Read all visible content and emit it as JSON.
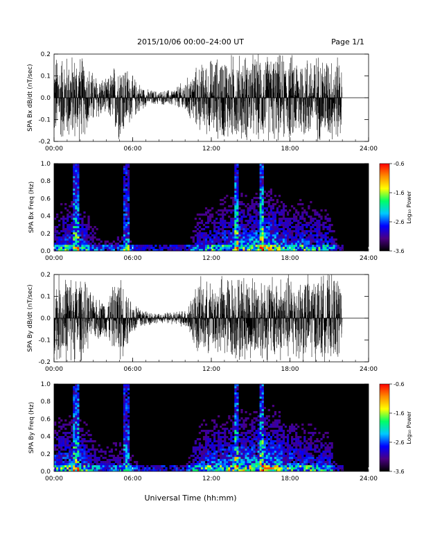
{
  "header": {
    "title": "2015/10/06  00:00–24:00 UT",
    "page": "Page 1/1"
  },
  "footer": {
    "xlabel": "Universal Time (hh:mm)"
  },
  "colorbar": {
    "label": "Log₁₀ Power",
    "range": [
      -3.6,
      -0.6
    ],
    "ticks": [
      "-0.6",
      "-1.6",
      "-2.6",
      "-3.6"
    ],
    "colors": [
      "#000000",
      "#4b0082",
      "#0000ff",
      "#00c8ff",
      "#00ff66",
      "#ffff00",
      "#ff8c00",
      "#ff0000"
    ]
  },
  "chart_data": [
    {
      "type": "line",
      "ylabel": "SPA Bx dB/dt (nT/sec)",
      "xlim": [
        0,
        24
      ],
      "ylim": [
        -0.2,
        0.2
      ],
      "xticks": [
        "00:00",
        "06:00",
        "12:00",
        "18:00",
        "24:00"
      ],
      "yticks": [
        "0.2",
        "0.1",
        "0.0",
        "-0.1",
        "-0.2"
      ],
      "x": [
        0,
        1,
        2,
        3,
        4,
        5,
        6,
        7,
        8,
        9,
        10,
        11,
        12,
        13,
        14,
        15,
        16,
        17,
        18,
        19,
        20,
        21,
        21.9,
        22,
        24
      ],
      "amplitude": [
        0.2,
        0.2,
        0.2,
        0.12,
        0.08,
        0.2,
        0.1,
        0.04,
        0.03,
        0.04,
        0.08,
        0.15,
        0.18,
        0.2,
        0.2,
        0.2,
        0.2,
        0.2,
        0.2,
        0.2,
        0.2,
        0.2,
        0.2,
        0,
        0
      ]
    },
    {
      "type": "heatmap",
      "ylabel": "SPA Bx Freq (Hz)",
      "xlim": [
        0,
        24
      ],
      "ylim": [
        0,
        1
      ],
      "xticks": [
        "00:00",
        "06:00",
        "12:00",
        "18:00",
        "24:00"
      ],
      "yticks": [
        "1.0",
        "0.8",
        "0.6",
        "0.4",
        "0.2",
        "0.0"
      ],
      "x": [
        0,
        1,
        2,
        3,
        4,
        5,
        6,
        7,
        8,
        9,
        10,
        11,
        12,
        13,
        14,
        15,
        16,
        17,
        18,
        19,
        20,
        21,
        22,
        23,
        24
      ],
      "activity": [
        0.4,
        0.55,
        0.6,
        0.3,
        0.2,
        0.25,
        0.2,
        0.1,
        0.1,
        0.1,
        0.12,
        0.4,
        0.5,
        0.6,
        0.7,
        0.65,
        0.8,
        0.7,
        0.5,
        0.55,
        0.5,
        0.45,
        0,
        0,
        0
      ],
      "spikes_hours": [
        1.7,
        5.5,
        13.9,
        15.9
      ],
      "data_end_hour": 22.0
    },
    {
      "type": "line",
      "ylabel": "SPA By dB/dt (nT/sec)",
      "xlim": [
        0,
        24
      ],
      "ylim": [
        -0.2,
        0.2
      ],
      "xticks": [
        "00:00",
        "06:00",
        "12:00",
        "18:00",
        "24:00"
      ],
      "yticks": [
        "0.2",
        "0.1",
        "0.0",
        "-0.1",
        "-0.2"
      ],
      "x": [
        0,
        1,
        2,
        3,
        4,
        5,
        6,
        7,
        8,
        9,
        10,
        11,
        12,
        13,
        14,
        15,
        16,
        17,
        18,
        19,
        20,
        21,
        21.9,
        22,
        24
      ],
      "amplitude": [
        0.2,
        0.2,
        0.2,
        0.1,
        0.09,
        0.2,
        0.08,
        0.04,
        0.02,
        0.03,
        0.04,
        0.18,
        0.16,
        0.2,
        0.2,
        0.2,
        0.2,
        0.2,
        0.2,
        0.2,
        0.2,
        0.2,
        0.2,
        0,
        0
      ]
    },
    {
      "type": "heatmap",
      "ylabel": "SPA By Freq (Hz)",
      "xlim": [
        0,
        24
      ],
      "ylim": [
        0,
        1
      ],
      "xticks": [
        "00:00",
        "06:00",
        "12:00",
        "18:00",
        "24:00"
      ],
      "yticks": [
        "1.0",
        "0.8",
        "0.6",
        "0.4",
        "0.2",
        "0.0"
      ],
      "x": [
        0,
        1,
        2,
        3,
        4,
        5,
        6,
        7,
        8,
        9,
        10,
        11,
        12,
        13,
        14,
        15,
        16,
        17,
        18,
        19,
        20,
        21,
        22,
        23,
        24
      ],
      "activity": [
        0.55,
        0.6,
        0.65,
        0.4,
        0.3,
        0.35,
        0.25,
        0.15,
        0.12,
        0.12,
        0.15,
        0.5,
        0.6,
        0.65,
        0.75,
        0.7,
        0.85,
        0.75,
        0.6,
        0.55,
        0.5,
        0.45,
        0,
        0,
        0
      ],
      "spikes_hours": [
        1.7,
        5.5,
        13.9,
        15.9
      ],
      "data_end_hour": 22.0
    }
  ]
}
